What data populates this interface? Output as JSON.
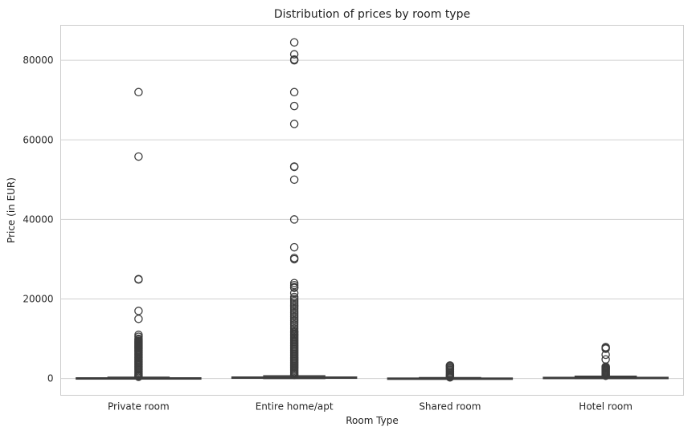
{
  "chart_data": {
    "type": "box",
    "title": "Distribution of prices by room type",
    "xlabel": "Room Type",
    "ylabel": "Price (in EUR)",
    "ylim": [
      -4200,
      88800
    ],
    "yticks": [
      0,
      20000,
      40000,
      60000,
      80000
    ],
    "grid": true,
    "categories": [
      "Private room",
      "Entire home/apt",
      "Shared room",
      "Hotel room"
    ],
    "boxes": [
      {
        "category": "Private room",
        "whisker_low": 0,
        "q1": 70,
        "median": 110,
        "q3": 180,
        "whisker_high": 350,
        "outliers": [
          72000,
          55800,
          25000,
          24900,
          17000,
          15000,
          11000,
          10500,
          10000,
          9800,
          9500,
          9300,
          9100,
          8900,
          8700,
          8500,
          8300,
          8100,
          7900,
          7700,
          7500,
          7200,
          7000,
          6800,
          6500,
          6200,
          6000,
          5700,
          5400,
          5200,
          4900,
          4600,
          4300,
          4000,
          3700,
          3400,
          3100,
          2800,
          2500,
          2200,
          1900,
          1600,
          1300,
          1000,
          800,
          600,
          450
        ]
      },
      {
        "category": "Entire home/apt",
        "whisker_low": 0,
        "q1": 150,
        "median": 230,
        "q3": 380,
        "whisker_high": 700,
        "outliers": [
          84500,
          81500,
          80200,
          80000,
          72000,
          68500,
          64000,
          53300,
          53200,
          50000,
          40000,
          33000,
          30300,
          30000,
          24000,
          23500,
          23000,
          22800,
          21500,
          20500,
          20000,
          19500,
          19000,
          18500,
          18000,
          17500,
          17000,
          16500,
          16000,
          15500,
          15000,
          14500,
          14000,
          13500,
          13000,
          12500,
          12000,
          11800,
          11500,
          11200,
          11000,
          10700,
          10400,
          10100,
          9800,
          9500,
          9200,
          8900,
          8600,
          8300,
          8000,
          7700,
          7400,
          7100,
          6800,
          6500,
          6200,
          5900,
          5600,
          5300,
          5000,
          4700,
          4400,
          4100,
          3800,
          3500,
          3200,
          2900,
          2600,
          2300,
          2000,
          1700,
          1400,
          1100,
          900
        ]
      },
      {
        "category": "Shared room",
        "whisker_low": 0,
        "q1": 40,
        "median": 70,
        "q3": 120,
        "whisker_high": 250,
        "outliers": [
          3300,
          3100,
          2800,
          2500,
          2200,
          1900,
          1600,
          1300,
          1000,
          800,
          600,
          400,
          300
        ]
      },
      {
        "category": "Hotel room",
        "whisker_low": 0,
        "q1": 120,
        "median": 180,
        "q3": 300,
        "whisker_high": 600,
        "outliers": [
          7900,
          7700,
          7500,
          6000,
          4800,
          3000,
          2800,
          2600,
          2400,
          2200,
          2000,
          1800,
          1600,
          1400,
          1200,
          1000,
          850,
          700
        ]
      }
    ]
  }
}
